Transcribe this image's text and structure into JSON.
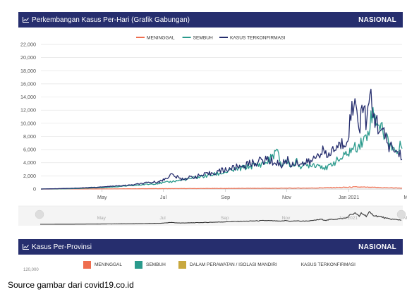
{
  "header1": {
    "title": "Perkembangan Kasus Per-Hari (Grafik Gabungan)",
    "tag": "NASIONAL",
    "icon": "line-chart-icon"
  },
  "header2": {
    "title": "Kasus Per-Provinsi",
    "tag": "NASIONAL",
    "icon": "line-chart-icon"
  },
  "chart_data": {
    "type": "line",
    "title": "Perkembangan Kasus Per-Hari (Grafik Gabungan)",
    "xlabel": "",
    "ylabel": "",
    "ylim": [
      0,
      22000
    ],
    "yticks": [
      0,
      2000,
      4000,
      6000,
      8000,
      10000,
      12000,
      14000,
      16000,
      18000,
      20000,
      22000
    ],
    "ytick_labels": [
      "0",
      "2,000",
      "4,000",
      "6,000",
      "8,000",
      "10,000",
      "12,000",
      "14,000",
      "16,000",
      "18,000",
      "20,000",
      "22,000"
    ],
    "xlim": [
      0,
      360
    ],
    "xtick_positions": [
      61,
      122,
      184,
      245,
      307,
      366
    ],
    "xtick_labels": [
      "May",
      "Jul",
      "Sep",
      "Nov",
      "Jan 2021",
      "Mar"
    ],
    "x_unit": "days since 1 Mar 2020",
    "legend_position": "top-center",
    "series": [
      {
        "name": "MENINGGAL",
        "color": "#ef6e4f",
        "x": [
          0,
          30,
          60,
          90,
          120,
          150,
          180,
          210,
          240,
          270,
          300,
          315,
          330,
          345,
          360
        ],
        "y": [
          0,
          10,
          20,
          40,
          60,
          70,
          90,
          110,
          120,
          150,
          250,
          300,
          250,
          200,
          150
        ]
      },
      {
        "name": "SEMBUH",
        "color": "#2a9a8c",
        "x": [
          0,
          30,
          60,
          90,
          120,
          150,
          165,
          180,
          195,
          210,
          225,
          235,
          240,
          245,
          250,
          255,
          260,
          270,
          280,
          285,
          290,
          300,
          310,
          315,
          320,
          325,
          330,
          335,
          340,
          345,
          350,
          355,
          360
        ],
        "y": [
          0,
          50,
          200,
          500,
          900,
          1600,
          2000,
          2400,
          3000,
          3500,
          4000,
          5800,
          3600,
          4300,
          3500,
          4100,
          3400,
          3800,
          3600,
          3000,
          3900,
          4700,
          6000,
          6500,
          7200,
          8000,
          11500,
          10500,
          9000,
          7700,
          6500,
          5500,
          7000
        ]
      },
      {
        "name": "KASUS TERKONFIRMASI",
        "color": "#262e6e",
        "x": [
          0,
          30,
          60,
          90,
          120,
          130,
          140,
          150,
          165,
          180,
          195,
          210,
          225,
          235,
          240,
          245,
          250,
          255,
          260,
          270,
          280,
          285,
          290,
          300,
          305,
          310,
          315,
          318,
          320,
          325,
          328,
          330,
          335,
          340,
          345,
          350,
          355,
          360
        ],
        "y": [
          0,
          100,
          300,
          600,
          1200,
          2200,
          1500,
          1800,
          2200,
          2800,
          3300,
          3900,
          4500,
          4000,
          3600,
          4500,
          3600,
          4200,
          3800,
          4200,
          6000,
          4800,
          5800,
          6800,
          7500,
          12000,
          13000,
          9000,
          13500,
          10000,
          14300,
          12000,
          10000,
          9000,
          7000,
          6200,
          5600,
          5100
        ]
      }
    ]
  },
  "legend2": {
    "items": [
      {
        "label": "MENINGGAL",
        "color": "#ef6e4f"
      },
      {
        "label": "SEMBUH",
        "color": "#2a9a8c"
      },
      {
        "label": "DALAM PERAWATAN / ISOLASI MANDIRI",
        "color": "#c8a83e"
      },
      {
        "label": "KASUS TERKONFIRMASI",
        "color": "#262e6e"
      }
    ]
  },
  "cutoff_label": "120,000",
  "source": "Source gambar dari covid19.co.id"
}
